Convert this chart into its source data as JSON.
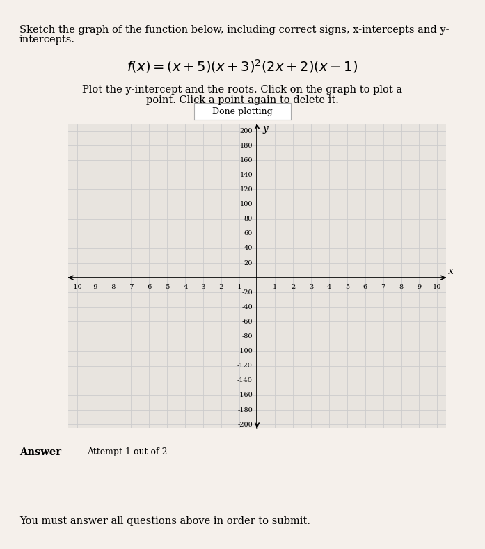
{
  "title_line1": "Sketch the graph of the function below, including correct signs, x-intercepts and y-",
  "title_line2": "intercepts.",
  "formula": "f(x) = (x+5)(x+3)^{2}(2x+2)(x-1)",
  "instruction_line1": "Plot the y-intercept and the roots. Click on the graph to plot a",
  "instruction_line2": "point. Click a point again to delete it.",
  "button_text": "Done plotting",
  "xlabel": "x",
  "ylabel": "y",
  "xlim": [
    -10,
    10
  ],
  "ylim": [
    -200,
    200
  ],
  "xticks": [
    -10,
    -9,
    -8,
    -7,
    -6,
    -5,
    -4,
    -3,
    -2,
    -1,
    1,
    2,
    3,
    4,
    5,
    6,
    7,
    8,
    9,
    10
  ],
  "yticks": [
    -200,
    -180,
    -160,
    -140,
    -120,
    -100,
    -80,
    -60,
    -40,
    -20,
    20,
    40,
    60,
    80,
    100,
    120,
    140,
    160,
    180,
    200
  ],
  "grid_color": "#cccccc",
  "axis_color": "#000000",
  "background_color": "#f5f0eb",
  "plot_bg_color": "#e8e4df",
  "answer_text": "Answer",
  "attempt_text": "Attempt 1 out of 2",
  "submit_text": "You must answer all questions above in order to submit."
}
